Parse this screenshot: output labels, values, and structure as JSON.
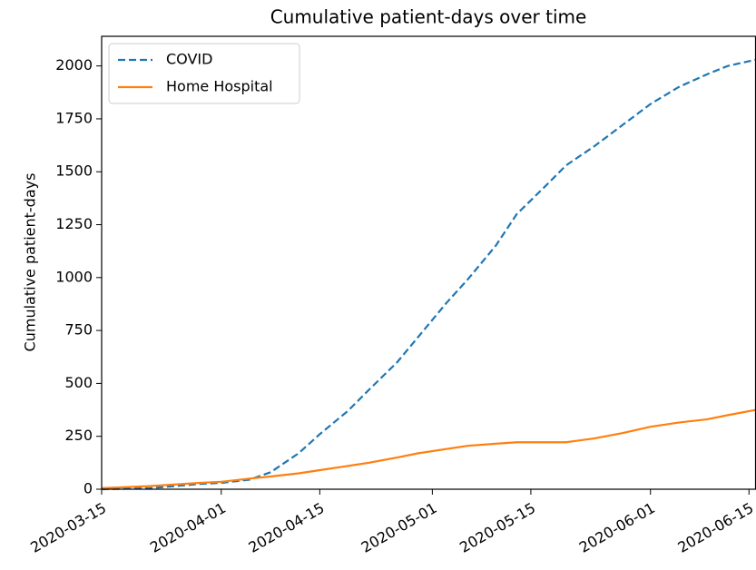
{
  "chart_data": {
    "type": "line",
    "title": "Cumulative patient-days over time",
    "ylabel": "Cumulative patient-days",
    "x": [
      "2020-03-15",
      "2020-03-22",
      "2020-03-29",
      "2020-04-01",
      "2020-04-05",
      "2020-04-08",
      "2020-04-12",
      "2020-04-15",
      "2020-04-19",
      "2020-04-22",
      "2020-04-26",
      "2020-04-29",
      "2020-05-03",
      "2020-05-06",
      "2020-05-10",
      "2020-05-13",
      "2020-05-17",
      "2020-05-20",
      "2020-05-24",
      "2020-05-28",
      "2020-06-01",
      "2020-06-05",
      "2020-06-09",
      "2020-06-12",
      "2020-06-16"
    ],
    "series": [
      {
        "name": "COVID",
        "color": "#1f77b4",
        "linestyle": "dashed",
        "values": [
          0,
          5,
          25,
          30,
          45,
          80,
          170,
          260,
          370,
          470,
          600,
          720,
          880,
          990,
          1150,
          1300,
          1430,
          1530,
          1620,
          1720,
          1820,
          1900,
          1960,
          2000,
          2030
        ]
      },
      {
        "name": "Home Hospital",
        "color": "#ff7f0e",
        "linestyle": "solid",
        "values": [
          5,
          15,
          30,
          35,
          50,
          60,
          75,
          90,
          110,
          125,
          150,
          170,
          190,
          205,
          215,
          222,
          222,
          222,
          240,
          265,
          295,
          315,
          330,
          350,
          375
        ]
      }
    ],
    "xlim": [
      "2020-03-15",
      "2020-06-16"
    ],
    "xticks": [
      "2020-03-15",
      "2020-04-01",
      "2020-04-15",
      "2020-05-01",
      "2020-05-15",
      "2020-06-01",
      "2020-06-15"
    ],
    "ylim": [
      0,
      2140
    ],
    "yticks": [
      0,
      250,
      500,
      750,
      1000,
      1250,
      1500,
      1750,
      2000
    ],
    "legend": "upper-left"
  }
}
